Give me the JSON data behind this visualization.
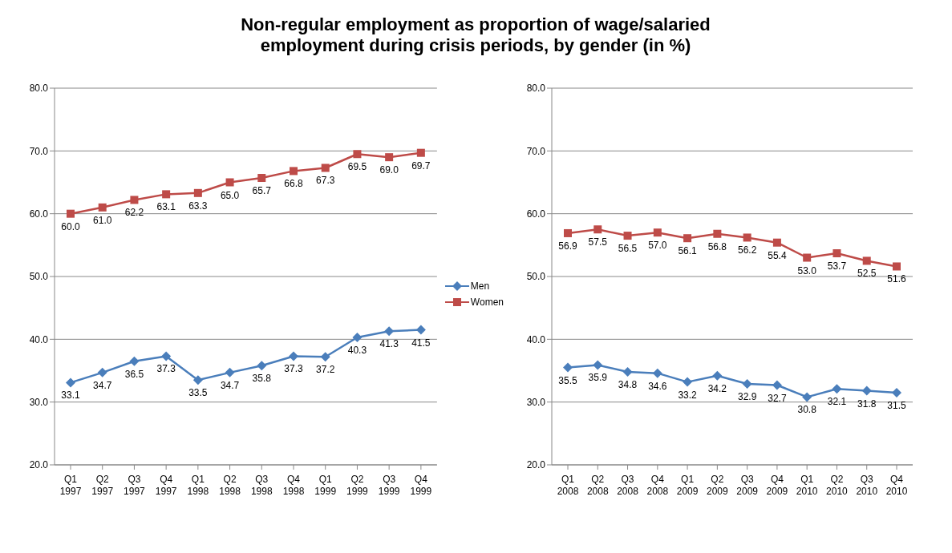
{
  "chart_data": [
    {
      "type": "line",
      "title": "Non-regular employment as proportion of wage/salaried employment during crisis periods, by gender (in %)",
      "categories": [
        "Q1 1997",
        "Q2 1997",
        "Q3 1997",
        "Q4 1997",
        "Q1 1998",
        "Q2 1998",
        "Q3 1998",
        "Q4 1998",
        "Q1 1999",
        "Q2 1999",
        "Q3 1999",
        "Q4 1999"
      ],
      "series": [
        {
          "name": "Men",
          "color": "#4a7ebb",
          "marker": "diamond",
          "values": [
            33.1,
            34.7,
            36.5,
            37.3,
            33.5,
            34.7,
            35.8,
            37.3,
            37.2,
            40.3,
            41.3,
            41.5
          ],
          "value_labels": [
            "33.1",
            "34.7",
            "36.5",
            "37.3",
            "33.5",
            "34.7",
            "35.8",
            "37.3",
            "37.2",
            "40.3",
            "41.3",
            "41.5"
          ]
        },
        {
          "name": "Women",
          "color": "#be4b48",
          "marker": "square",
          "values": [
            60.0,
            61.0,
            62.2,
            63.1,
            63.3,
            65.0,
            65.7,
            66.8,
            67.3,
            69.5,
            69.0,
            69.7
          ],
          "value_labels": [
            "60.0",
            "61.0",
            "62.2",
            "63.1",
            "63.3",
            "65.0",
            "65.7",
            "66.8",
            "67.3",
            "69.5",
            "69.0",
            "69.7"
          ]
        }
      ],
      "ylim": [
        20,
        80
      ],
      "yticks": [
        {
          "value": 20,
          "label": "20.0"
        },
        {
          "value": 30,
          "label": "30.0"
        },
        {
          "value": 40,
          "label": "40.0"
        },
        {
          "value": 50,
          "label": "50.0"
        },
        {
          "value": 60,
          "label": "60.0"
        },
        {
          "value": 70,
          "label": "70.0"
        },
        {
          "value": 80,
          "label": "80.0"
        }
      ],
      "grid": "y",
      "legend": "right",
      "line_style": "solid"
    },
    {
      "type": "line",
      "categories": [
        "Q1 2008",
        "Q2 2008",
        "Q3 2008",
        "Q4 2008",
        "Q1 2009",
        "Q2 2009",
        "Q3 2009",
        "Q4 2009",
        "Q1 2010",
        "Q2 2010",
        "Q3 2010",
        "Q4 2010"
      ],
      "series": [
        {
          "color": "#4a7ebb",
          "marker": "diamond",
          "values": [
            35.5,
            35.9,
            34.8,
            34.6,
            33.2,
            34.2,
            32.9,
            32.7,
            30.8,
            32.1,
            31.8,
            31.5
          ],
          "value_labels": [
            "35.5",
            "35.9",
            "34.8",
            "34.6",
            "33.2",
            "34.2",
            "32.9",
            "32.7",
            "30.8",
            "32.1",
            "31.8",
            "31.5"
          ]
        },
        {
          "color": "#be4b48",
          "marker": "square",
          "values": [
            56.9,
            57.5,
            56.5,
            57.0,
            56.1,
            56.8,
            56.2,
            55.4,
            53.0,
            53.7,
            52.5,
            51.6
          ],
          "value_labels": [
            "56.9",
            "57.5",
            "56.5",
            "57.0",
            "56.1",
            "56.8",
            "56.2",
            "55.4",
            "53.0",
            "53.7",
            "52.5",
            "51.6"
          ]
        }
      ],
      "ylim": [
        20,
        80
      ],
      "yticks": [
        {
          "value": 20,
          "label": "20.0"
        },
        {
          "value": 30,
          "label": "30.0"
        },
        {
          "value": 40,
          "label": "40.0"
        },
        {
          "value": 50,
          "label": "50.0"
        },
        {
          "value": 60,
          "label": "60.0"
        },
        {
          "value": 70,
          "label": "70.0"
        },
        {
          "value": 80,
          "label": "80.0"
        }
      ],
      "grid": "y",
      "line_style": "solid"
    }
  ]
}
